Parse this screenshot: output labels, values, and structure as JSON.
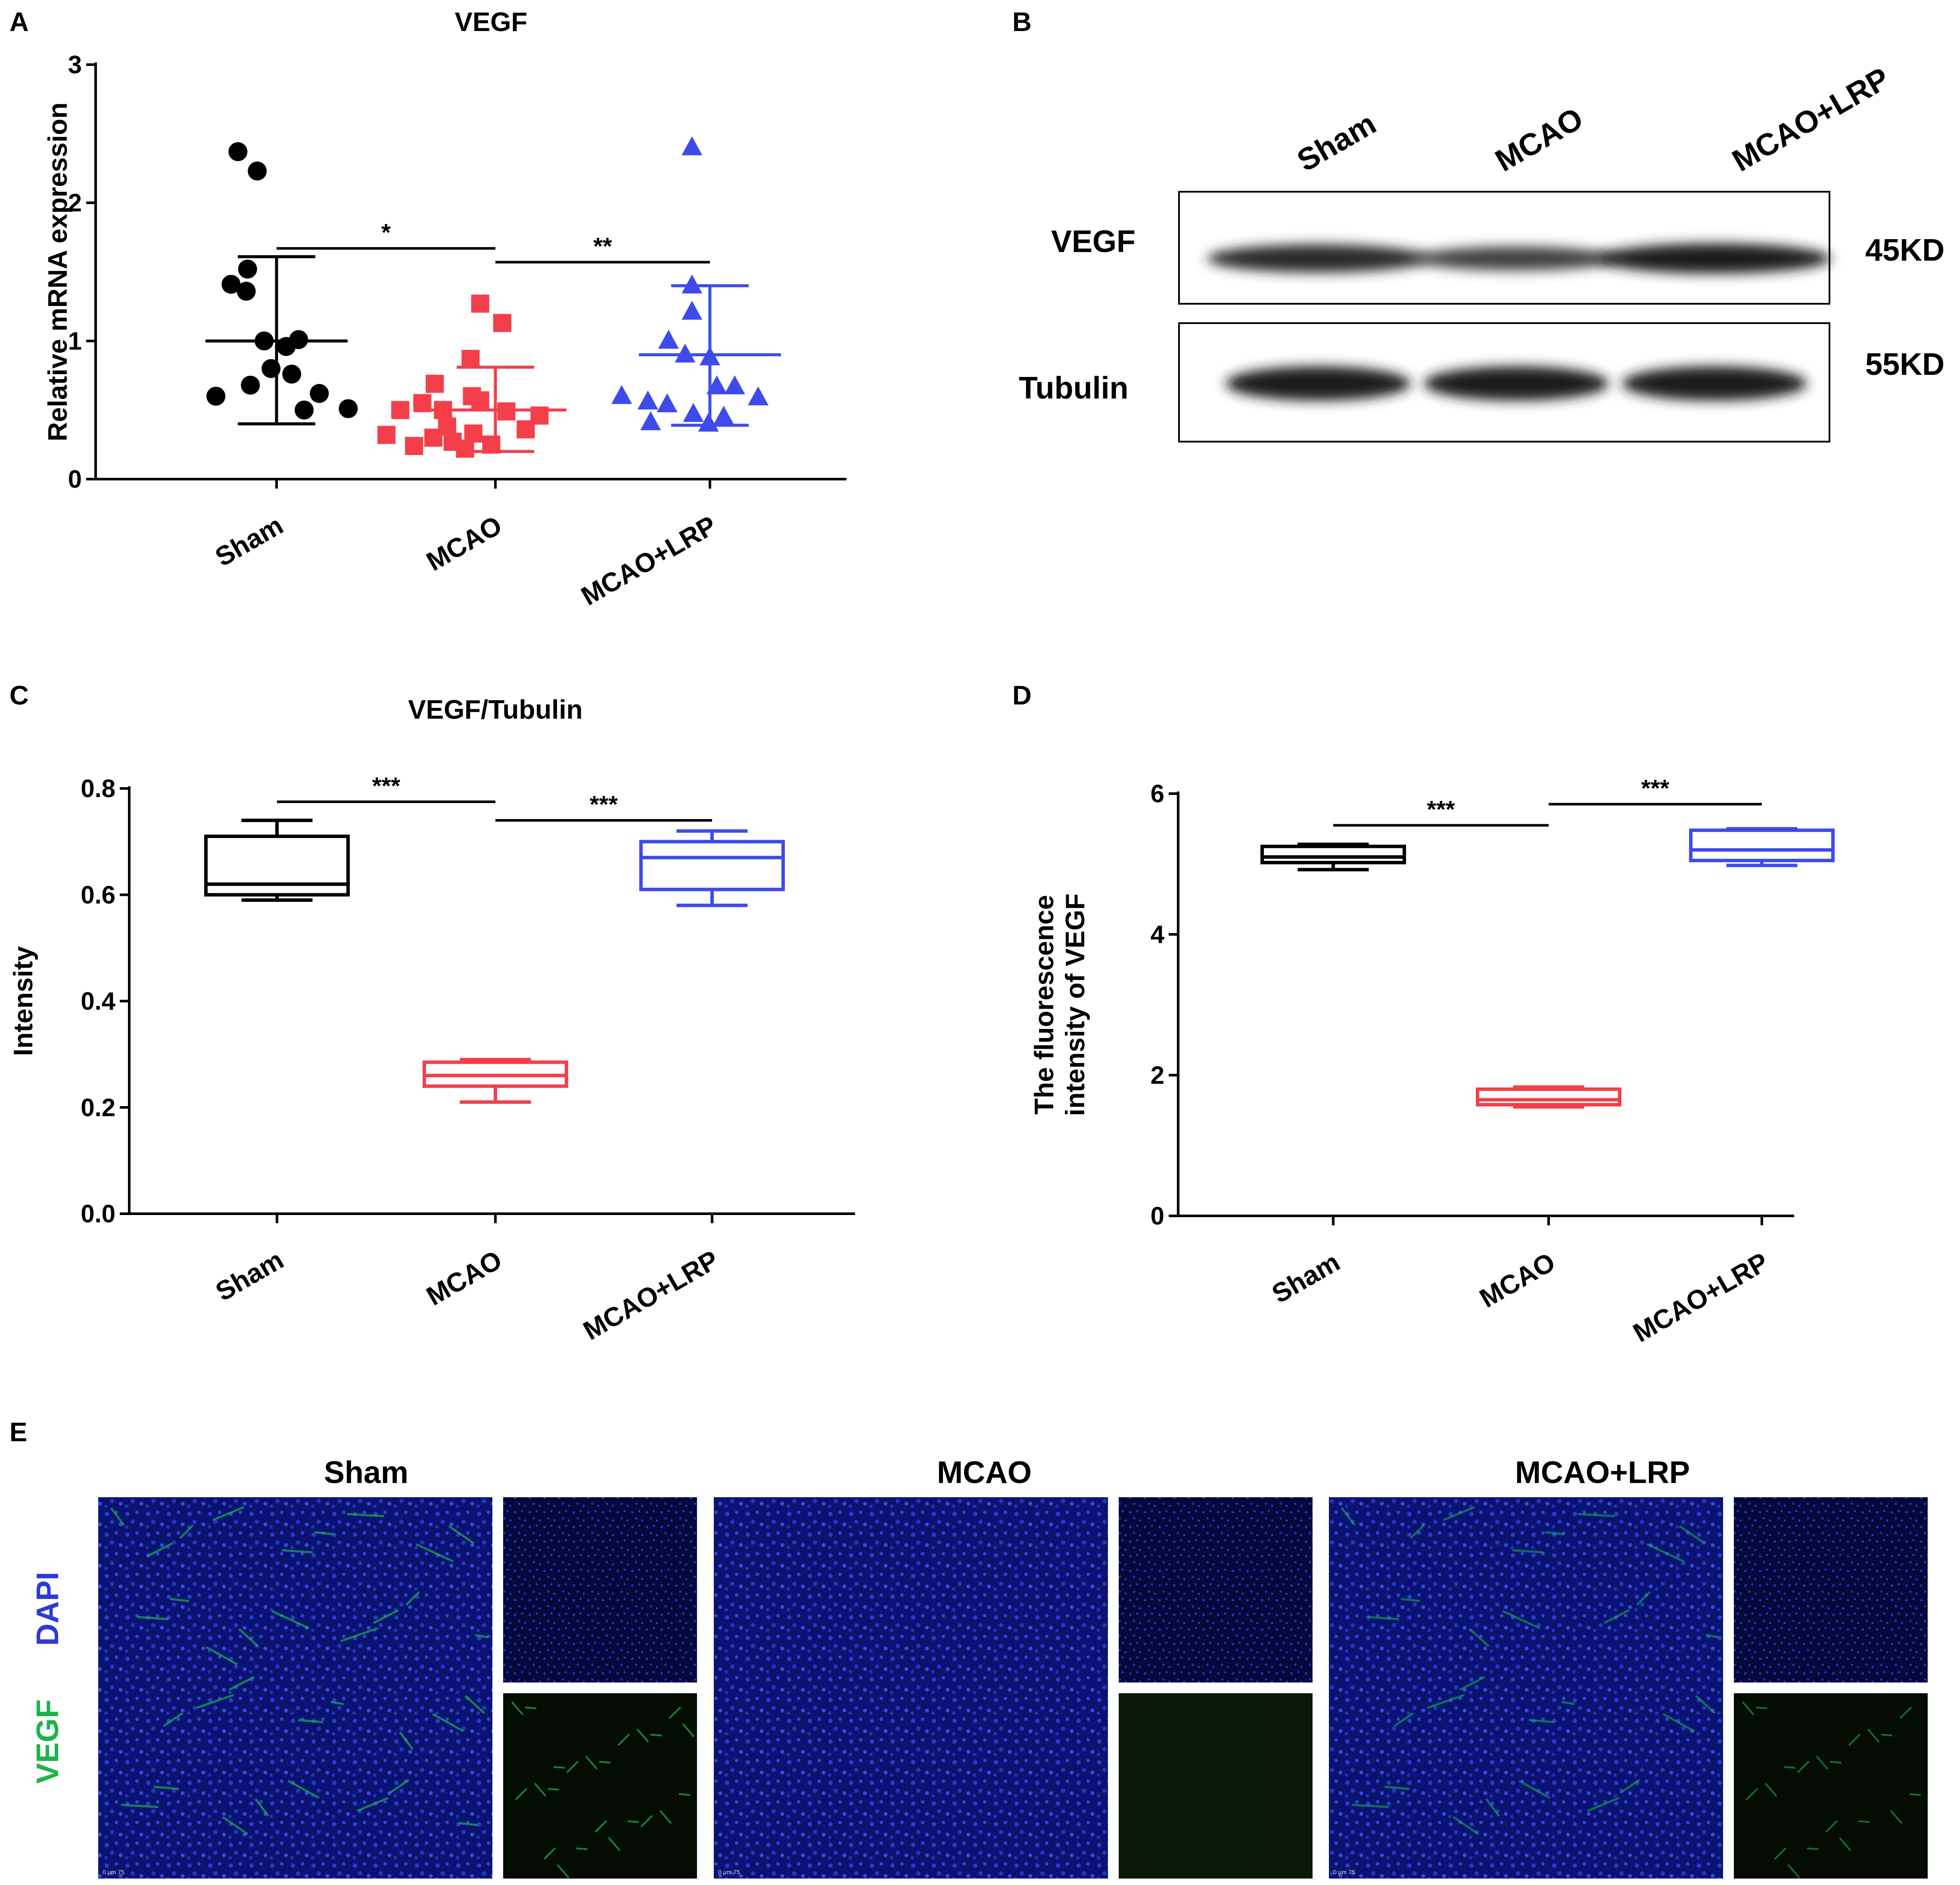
{
  "panel_letters": [
    "A",
    "B",
    "C",
    "D",
    "E"
  ],
  "chart_data": [
    {
      "panel": "A",
      "type": "scatter",
      "title": "VEGF",
      "ylabel": "Relative mRNA expression",
      "ylim": [
        0,
        3
      ],
      "yticks": [
        "0",
        "1",
        "2",
        "3"
      ],
      "categories": [
        "Sham",
        "MCAO",
        "MCAO+LRP"
      ],
      "series": [
        {
          "color": "#000000",
          "marker": "circle",
          "points": [
            [
              0.72,
              2.37
            ],
            [
              0.86,
              2.23
            ],
            [
              0.79,
              1.52
            ],
            [
              0.67,
              1.41
            ],
            [
              0.78,
              1.36
            ],
            [
              0.91,
              1.0
            ],
            [
              1.16,
              1.01
            ],
            [
              1.07,
              0.96
            ],
            [
              0.96,
              0.8
            ],
            [
              1.11,
              0.76
            ],
            [
              0.81,
              0.68
            ],
            [
              1.31,
              0.62
            ],
            [
              0.56,
              0.6
            ],
            [
              1.2,
              0.5
            ],
            [
              1.52,
              0.51
            ]
          ],
          "mean": 1.0,
          "sd_low": 0.4,
          "sd_high": 1.61
        },
        {
          "color": "#f43f4a",
          "marker": "square",
          "points": [
            [
              1.89,
              1.27
            ],
            [
              2.05,
              1.13
            ],
            [
              1.82,
              0.87
            ],
            [
              1.56,
              0.69
            ],
            [
              1.83,
              0.6
            ],
            [
              1.89,
              0.57
            ],
            [
              1.47,
              0.55
            ],
            [
              1.31,
              0.5
            ],
            [
              1.62,
              0.5
            ],
            [
              2.08,
              0.49
            ],
            [
              2.32,
              0.46
            ],
            [
              1.65,
              0.38
            ],
            [
              2.22,
              0.36
            ],
            [
              1.55,
              0.3
            ],
            [
              1.84,
              0.33
            ],
            [
              1.21,
              0.32
            ],
            [
              1.69,
              0.27
            ],
            [
              1.97,
              0.25
            ],
            [
              1.41,
              0.24
            ],
            [
              1.78,
              0.22
            ]
          ],
          "mean": 0.5,
          "sd_low": 0.2,
          "sd_high": 0.81
        },
        {
          "color": "#3e4bea",
          "marker": "triangle",
          "points": [
            [
              2.87,
              2.4
            ],
            [
              2.87,
              1.4
            ],
            [
              2.87,
              1.21
            ],
            [
              2.7,
              1.0
            ],
            [
              2.82,
              0.9
            ],
            [
              3.0,
              0.88
            ],
            [
              3.05,
              0.67
            ],
            [
              3.18,
              0.67
            ],
            [
              2.36,
              0.6
            ],
            [
              3.35,
              0.59
            ],
            [
              2.55,
              0.56
            ],
            [
              2.69,
              0.54
            ],
            [
              2.88,
              0.47
            ],
            [
              3.1,
              0.45
            ],
            [
              2.99,
              0.4
            ],
            [
              2.57,
              0.41
            ]
          ],
          "mean": 0.9,
          "sd_low": 0.39,
          "sd_high": 1.4
        }
      ],
      "significance": [
        {
          "from": 0,
          "to": 1,
          "label": "*",
          "y": 1.67
        },
        {
          "from": 1,
          "to": 2,
          "label": "**",
          "y": 1.57
        }
      ]
    },
    {
      "panel": "C",
      "type": "box",
      "title": "VEGF/Tubulin",
      "ylabel": "Intensity",
      "ylim": [
        0,
        0.8
      ],
      "yticks": [
        "0.0",
        "0.2",
        "0.4",
        "0.6",
        "0.8"
      ],
      "categories": [
        "Sham",
        "MCAO",
        "MCAO+LRP"
      ],
      "series": [
        {
          "color": "#000000",
          "min": 0.59,
          "q1": 0.6,
          "median": 0.62,
          "q3": 0.71,
          "max": 0.74
        },
        {
          "color": "#f43f4a",
          "min": 0.21,
          "q1": 0.24,
          "median": 0.26,
          "q3": 0.285,
          "max": 0.29
        },
        {
          "color": "#3e4bea",
          "min": 0.58,
          "q1": 0.61,
          "median": 0.67,
          "q3": 0.7,
          "max": 0.72
        }
      ],
      "significance": [
        {
          "from": 0,
          "to": 1,
          "label": "***",
          "y": 0.775
        },
        {
          "from": 1,
          "to": 2,
          "label": "***",
          "y": 0.74
        }
      ]
    },
    {
      "panel": "D",
      "type": "box",
      "title": "",
      "ylabel_lines": [
        "The fluorescence",
        "intensity of VEGF"
      ],
      "ylim": [
        0,
        6
      ],
      "yticks": [
        "0",
        "2",
        "4",
        "6"
      ],
      "categories": [
        "Sham",
        "MCAO",
        "MCAO+LRP"
      ],
      "series": [
        {
          "color": "#000000",
          "min": 4.92,
          "q1": 5.02,
          "median": 5.1,
          "q3": 5.25,
          "max": 5.28
        },
        {
          "color": "#f43f4a",
          "min": 1.55,
          "q1": 1.58,
          "median": 1.65,
          "q3": 1.8,
          "max": 1.83
        },
        {
          "color": "#3e4bea",
          "min": 4.98,
          "q1": 5.05,
          "median": 5.2,
          "q3": 5.48,
          "max": 5.5
        }
      ],
      "significance": [
        {
          "from": 0,
          "to": 1,
          "label": "***",
          "y": 5.55
        },
        {
          "from": 1,
          "to": 2,
          "label": "***",
          "y": 5.85
        }
      ]
    }
  ],
  "western_blot": {
    "lanes": [
      "Sham",
      "MCAO",
      "MCAO+LRP"
    ],
    "rows": [
      {
        "label": "VEGF",
        "size": "45KD",
        "band_strength": [
          0.85,
          0.55,
          1.0
        ]
      },
      {
        "label": "Tubulin",
        "size": "55KD",
        "band_strength": [
          1.0,
          1.0,
          1.0
        ]
      }
    ]
  },
  "immuno": {
    "groups": [
      "Sham",
      "MCAO",
      "MCAO+LRP"
    ],
    "stain_green": "VEGF",
    "stain_blue": "DAPI",
    "green_color": "#1db34a",
    "blue_color": "#2c3ad8",
    "green_level": [
      0.9,
      0.1,
      0.75
    ],
    "scale_text": "0   μm   75"
  }
}
